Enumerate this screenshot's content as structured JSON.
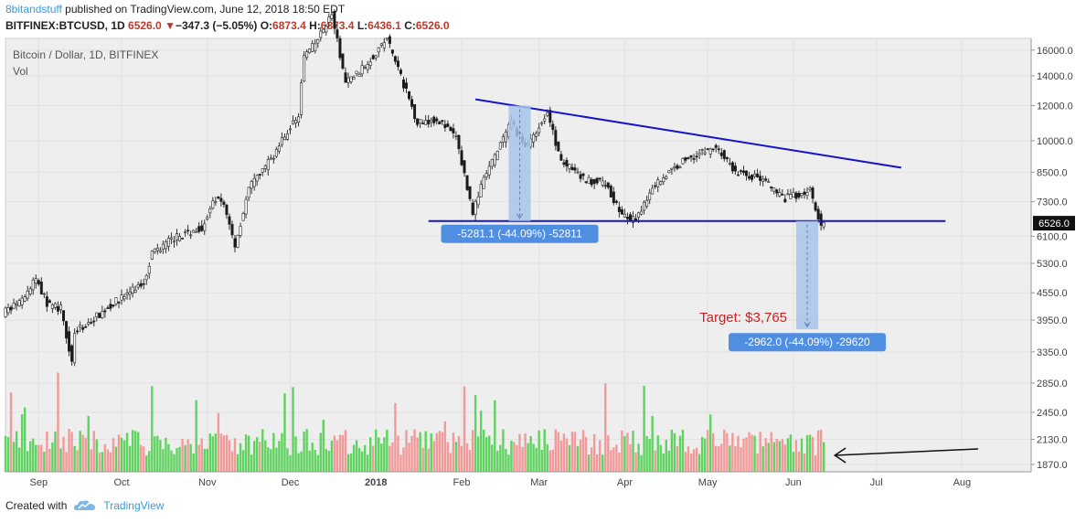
{
  "header": {
    "author": "8bitandstuff",
    "published": "published on TradingView.com, June 12, 2018 18:50 EDT",
    "symbol": "BITFINEX:BTCUSD, 1D",
    "last": "6526.0",
    "change_arrow": "▼",
    "change": "−347.3 (−5.05%)",
    "o_label": "O:",
    "o": "6873.4",
    "h_label": "H:",
    "h": "6873.4",
    "l_label": "L:",
    "l": "6436.1",
    "c_label": "C:",
    "c": "6526.0"
  },
  "footer": {
    "created_with": "Created with",
    "brand": "TradingView",
    "logo_icon": "tradingview-cloud-icon"
  },
  "colors": {
    "up": "#555555",
    "down": "#1a1a1a",
    "vol_up": "#5fd35f",
    "vol_down": "#f29a9a",
    "trendline": "#1414c8",
    "measure_fill": "#a8c4ea",
    "label_bg": "#4f8ee0",
    "target_text": "#d02020",
    "bg": "#eeeeee"
  },
  "chart_data": {
    "type": "candlestick",
    "title": "Bitcoin / Dollar, 1D, BITFINEX",
    "subtitle": "Vol",
    "y_scale": "log",
    "ylim": [
      1800,
      17000
    ],
    "y_ticks": [
      1870.0,
      2130.0,
      2450.0,
      2850.0,
      3350.0,
      3950.0,
      4550.0,
      5300.0,
      6100.0,
      7300.0,
      8500.0,
      10000.0,
      12000.0,
      14000.0,
      16000.0
    ],
    "x_ticks": [
      "Sep",
      "Oct",
      "Nov",
      "Dec",
      "2018",
      "Feb",
      "Mar",
      "Apr",
      "May",
      "Jun",
      "Jul",
      "Aug"
    ],
    "xlim": [
      "2017-08-20",
      "2018-08-26"
    ],
    "last_price_label": "6526.0",
    "price_path": [
      [
        "2017-08-20",
        4100
      ],
      [
        "2017-08-27",
        4350
      ],
      [
        "2017-09-01",
        4900
      ],
      [
        "2017-09-05",
        4300
      ],
      [
        "2017-09-10",
        4200
      ],
      [
        "2017-09-14",
        3200
      ],
      [
        "2017-09-15",
        3700
      ],
      [
        "2017-09-20",
        3900
      ],
      [
        "2017-09-30",
        4350
      ],
      [
        "2017-10-10",
        4800
      ],
      [
        "2017-10-13",
        5600
      ],
      [
        "2017-10-20",
        6000
      ],
      [
        "2017-10-31",
        6400
      ],
      [
        "2017-11-05",
        7400
      ],
      [
        "2017-11-08",
        7200
      ],
      [
        "2017-11-12",
        5800
      ],
      [
        "2017-11-17",
        7800
      ],
      [
        "2017-11-26",
        9300
      ],
      [
        "2017-11-29",
        10000
      ],
      [
        "2017-12-05",
        11500
      ],
      [
        "2017-12-07",
        15500
      ],
      [
        "2017-12-11",
        16500
      ],
      [
        "2017-12-17",
        19300
      ],
      [
        "2017-12-22",
        13500
      ],
      [
        "2017-12-28",
        14500
      ],
      [
        "2018-01-06",
        17000
      ],
      [
        "2018-01-10",
        14500
      ],
      [
        "2018-01-17",
        11000
      ],
      [
        "2018-01-24",
        11200
      ],
      [
        "2018-01-31",
        10200
      ],
      [
        "2018-02-06",
        6900
      ],
      [
        "2018-02-10",
        8200
      ],
      [
        "2018-02-20",
        11000
      ],
      [
        "2018-02-25",
        9700
      ],
      [
        "2018-03-05",
        11500
      ],
      [
        "2018-03-10",
        9000
      ],
      [
        "2018-03-18",
        8200
      ],
      [
        "2018-03-26",
        8000
      ],
      [
        "2018-04-01",
        6800
      ],
      [
        "2018-04-06",
        6600
      ],
      [
        "2018-04-12",
        7900
      ],
      [
        "2018-04-24",
        9100
      ],
      [
        "2018-05-05",
        9700
      ],
      [
        "2018-05-12",
        8500
      ],
      [
        "2018-05-22",
        8200
      ],
      [
        "2018-05-29",
        7400
      ],
      [
        "2018-06-05",
        7600
      ],
      [
        "2018-06-08",
        7700
      ],
      [
        "2018-06-11",
        6800
      ],
      [
        "2018-06-12",
        6526
      ]
    ],
    "volume_series": {
      "name": "Vol",
      "scale": "relative"
    },
    "drawings": {
      "descending_trendline": [
        [
          "2018-02-06",
          12400
        ],
        [
          "2018-07-10",
          8700
        ]
      ],
      "support_line": [
        [
          "2018-01-20",
          6600
        ],
        [
          "2018-07-26",
          6600
        ]
      ],
      "measure_1": {
        "from": [
          "2018-02-18",
          12000
        ],
        "to": [
          "2018-02-26",
          6600
        ],
        "label": "-5281.1 (-44.09%) -52811"
      },
      "measure_2": {
        "from": [
          "2018-06-02",
          6600
        ],
        "to": [
          "2018-06-10",
          3765
        ],
        "label": "-2962.0 (-44.09%) -29620"
      },
      "target_label": "Target: $3,765",
      "arrow": {
        "points_to": "volume"
      }
    }
  }
}
